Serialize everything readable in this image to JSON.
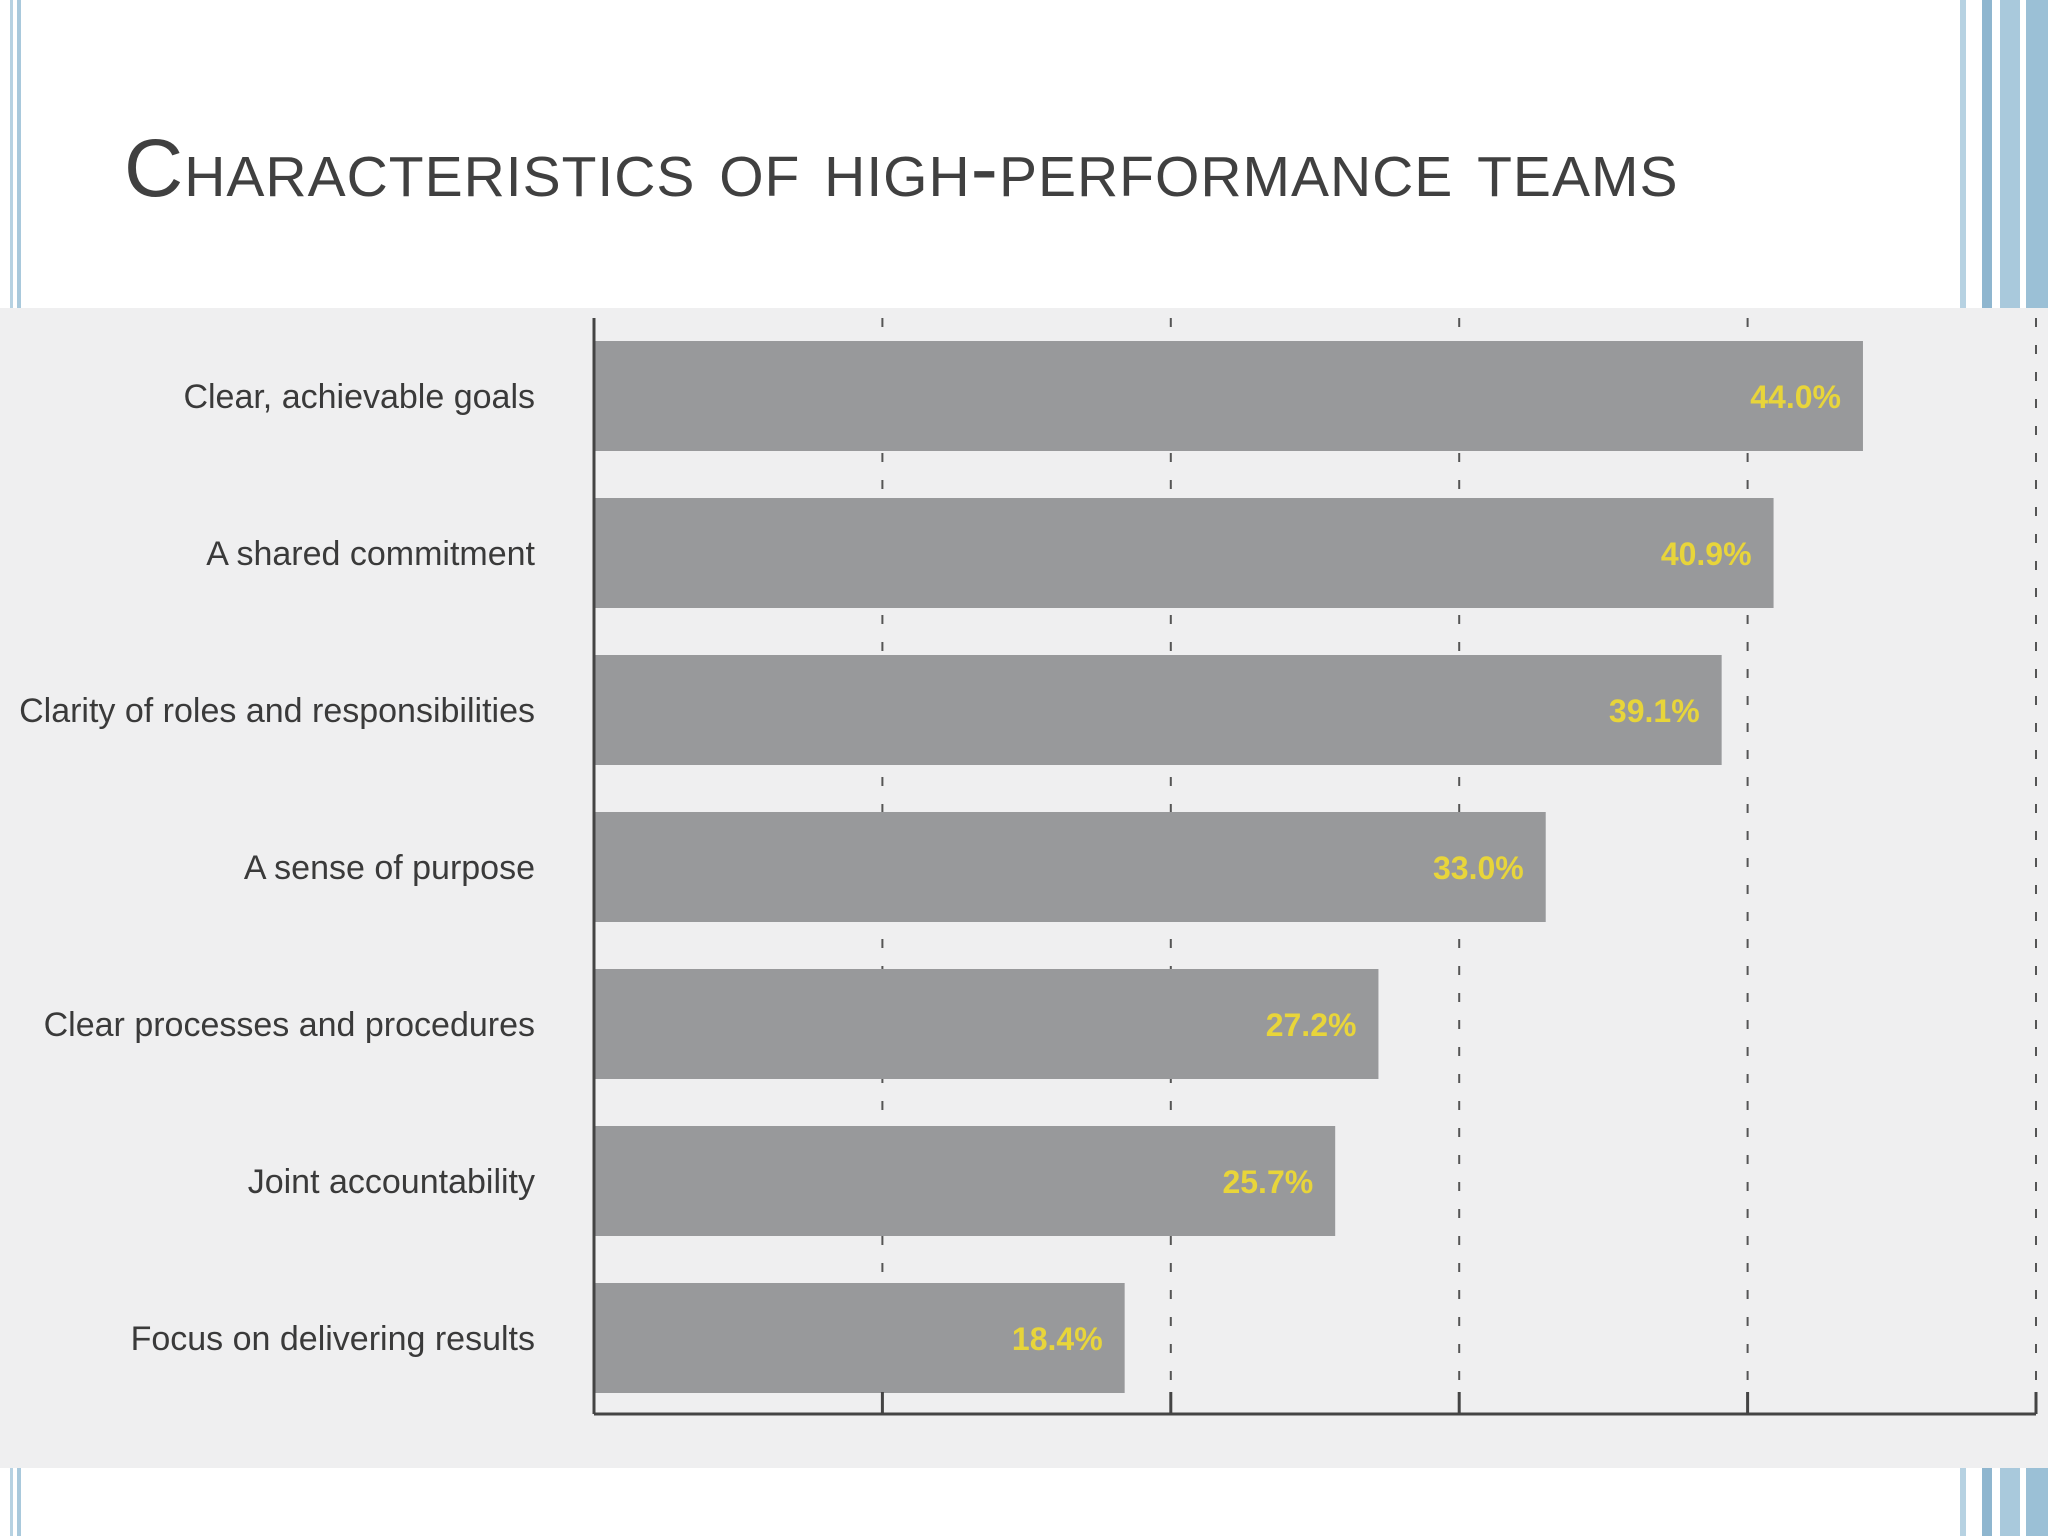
{
  "slide": {
    "title": "Characteristics of high-performance teams"
  },
  "colors": {
    "bar": "#98999b",
    "value_label": "#e8d53a",
    "panel_background": "#efeff0",
    "frame_accent": "#a9c9dc"
  },
  "chart_data": {
    "type": "bar",
    "orientation": "horizontal",
    "categories": [
      "Clear, achievable goals",
      "A shared commitment",
      "Clarity of roles and responsibilities",
      "A sense of purpose",
      "Clear processes and procedures",
      "Joint accountability",
      "Focus on delivering results"
    ],
    "values": [
      44.0,
      40.9,
      39.1,
      33.0,
      27.2,
      25.7,
      18.4
    ],
    "value_labels": [
      "44.0%",
      "40.9%",
      "39.1%",
      "33.0%",
      "27.2%",
      "25.7%",
      "18.4%"
    ],
    "xlim": [
      0,
      50
    ],
    "x_ticks": [
      0,
      10,
      20,
      30,
      40,
      50
    ],
    "grid": "vertical dashed",
    "legend": "none"
  }
}
